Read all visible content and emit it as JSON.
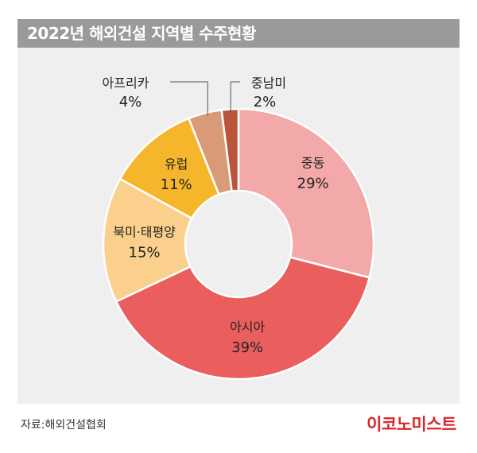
{
  "header": {
    "title": "2022년 해외건설 지역별 수주현황"
  },
  "footer": {
    "source": "자료:해외건설협회",
    "brand": "이코노미스트"
  },
  "chart_data": {
    "type": "pie",
    "title": "2022년 해외건설 지역별 수주현황",
    "unit": "%",
    "donut": true,
    "slices": [
      {
        "label": "중동",
        "value": 29,
        "value_label": "29%",
        "color": "#f3a9a9"
      },
      {
        "label": "아시아",
        "value": 39,
        "value_label": "39%",
        "color": "#ea5f5e"
      },
      {
        "label": "북미·태평양",
        "value": 15,
        "value_label": "15%",
        "color": "#fbd08c"
      },
      {
        "label": "유럽",
        "value": 11,
        "value_label": "11%",
        "color": "#f6b62b"
      },
      {
        "label": "아프리카",
        "value": 4,
        "value_label": "4%",
        "color": "#d99a78"
      },
      {
        "label": "중남미",
        "value": 2,
        "value_label": "2%",
        "color": "#b9553a"
      }
    ]
  }
}
